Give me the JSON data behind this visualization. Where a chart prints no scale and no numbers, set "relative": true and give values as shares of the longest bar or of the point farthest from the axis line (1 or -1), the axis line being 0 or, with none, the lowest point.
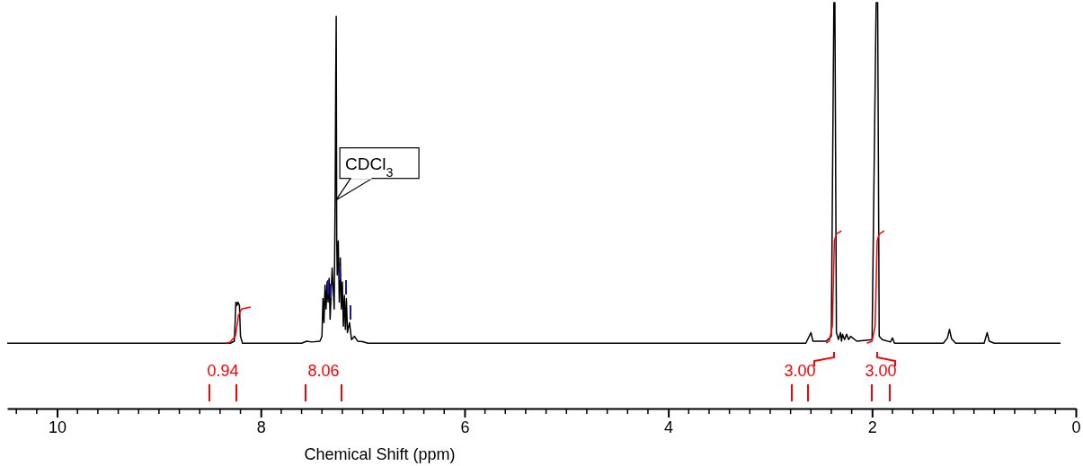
{
  "chart_data": {
    "type": "line",
    "relative": true,
    "xlabel": "Chemical Shift (ppm)",
    "xlim": [
      10.49,
      0
    ],
    "xticks": [
      10,
      8,
      6,
      4,
      2,
      0
    ],
    "grid": false,
    "marker": "none",
    "line_style": "solid",
    "series": [
      {
        "color": "#000000",
        "x": [
          10.49,
          8.3,
          8.26,
          8.245,
          8.235,
          8.225,
          8.21,
          8.2,
          8.18,
          7.6,
          7.55,
          7.5,
          7.42,
          7.4,
          7.39,
          7.38,
          7.37,
          7.36,
          7.35,
          7.34,
          7.33,
          7.32,
          7.3,
          7.28,
          7.27,
          7.265,
          7.26,
          7.255,
          7.25,
          7.24,
          7.23,
          7.22,
          7.21,
          7.2,
          7.19,
          7.18,
          7.17,
          7.16,
          7.15,
          7.13,
          7.11,
          7.08,
          7.05,
          7.0,
          6.95,
          2.65,
          2.6,
          2.58,
          2.45,
          2.4,
          2.375,
          2.365,
          2.35,
          2.33,
          2.31,
          2.3,
          2.29,
          2.27,
          2.25,
          2.23,
          2.21,
          2.15,
          2.0,
          1.96,
          1.945,
          1.93,
          1.9,
          1.82,
          1.8,
          1.78,
          1.3,
          1.26,
          1.24,
          1.22,
          1.18,
          0.9,
          0.87,
          0.85,
          0.8,
          0.15
        ],
        "values": [
          0.161,
          0.161,
          0.166,
          0.262,
          0.254,
          0.262,
          0.254,
          0.178,
          0.161,
          0.161,
          0.166,
          0.164,
          0.166,
          0.178,
          0.271,
          0.212,
          0.304,
          0.245,
          0.312,
          0.262,
          0.321,
          0.22,
          0.346,
          0.245,
          0.539,
          0.799,
          0.966,
          0.413,
          0.329,
          0.413,
          0.262,
          0.371,
          0.245,
          0.312,
          0.203,
          0.279,
          0.195,
          0.271,
          0.187,
          0.212,
          0.17,
          0.178,
          0.166,
          0.165,
          0.161,
          0.161,
          0.187,
          0.166,
          0.166,
          0.178,
          1,
          1,
          0.187,
          0.17,
          0.187,
          0.166,
          0.183,
          0.17,
          0.183,
          0.17,
          0.178,
          0.166,
          0.17,
          1,
          1,
          0.178,
          0.17,
          0.164,
          0.174,
          0.161,
          0.161,
          0.174,
          0.195,
          0.172,
          0.161,
          0.161,
          0.187,
          0.166,
          0.161,
          0.161
        ]
      },
      {
        "color": "#ff0000",
        "x": [
          8.34,
          8.3,
          8.25,
          8.22,
          8.19,
          8.1
        ],
        "values": [
          0.161,
          0.164,
          0.178,
          0.229,
          0.245,
          0.25
        ]
      },
      {
        "color": "#ff0000",
        "x": [
          2.45,
          2.42,
          2.39,
          2.37,
          2.35,
          2.3
        ],
        "values": [
          0.161,
          0.166,
          0.203,
          0.413,
          0.43,
          0.438
        ]
      },
      {
        "color": "#ff0000",
        "x": [
          2.05,
          2.0,
          1.97,
          1.95,
          1.93,
          1.88
        ],
        "values": [
          0.161,
          0.166,
          0.203,
          0.413,
          0.43,
          0.438
        ]
      }
    ],
    "annotations": [
      {
        "text": "CDCl$_{3}$",
        "x": 7.26,
        "y": 0.514
      },
      "0.94",
      "8.06",
      "3.00",
      "3.00"
    ]
  }
}
